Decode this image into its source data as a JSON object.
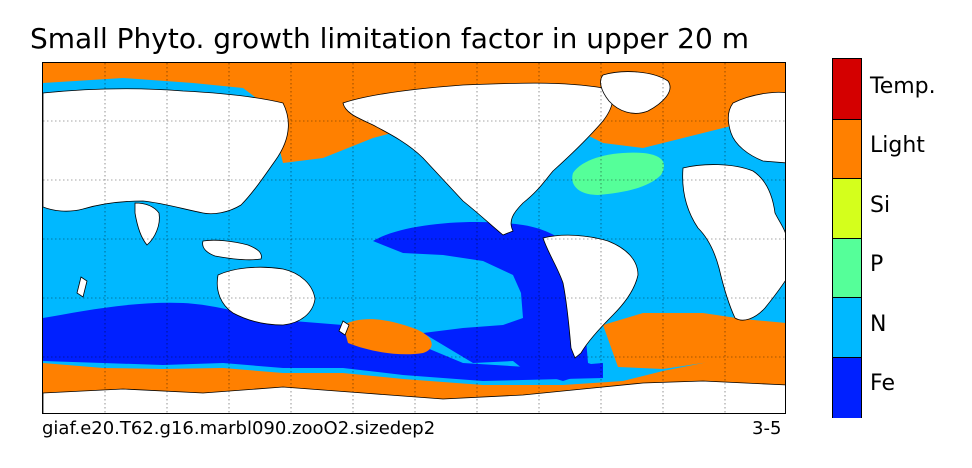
{
  "title": "Small Phyto. growth limitation factor in upper 20 m",
  "caption_left": "giaf.e20.T62.g16.marbl090.zooO2.sizedep2",
  "caption_right": "3-5",
  "colorbar": {
    "categories": [
      {
        "label": "Temp.",
        "color": "#d40000"
      },
      {
        "label": "Light",
        "color": "#ff8000"
      },
      {
        "label": "Si",
        "color": "#d4ff1c"
      },
      {
        "label": "P",
        "color": "#55ff99"
      },
      {
        "label": "N",
        "color": "#00b8ff"
      },
      {
        "label": "Fe",
        "color": "#0020ff"
      }
    ]
  },
  "map": {
    "land_color": "#ffffff",
    "ocean_default": "N",
    "gridlines": "dotted"
  }
}
